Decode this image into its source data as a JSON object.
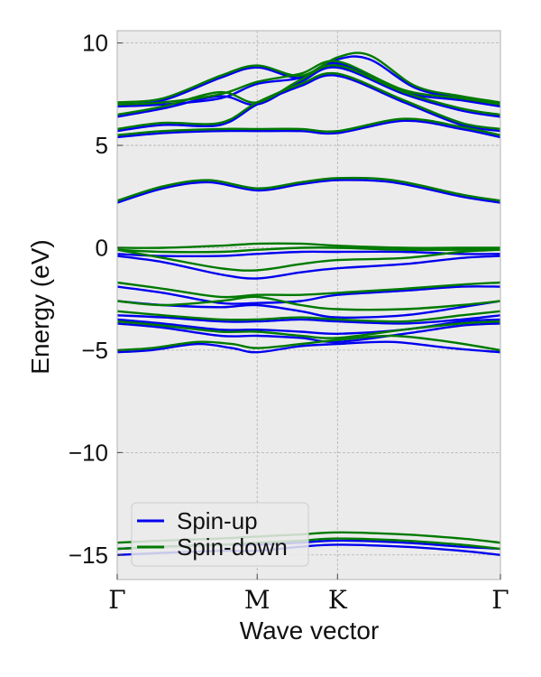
{
  "chart_data": {
    "type": "line",
    "title": "",
    "xlabel": "Wave vector",
    "ylabel": "Energy (eV)",
    "ylim": [
      -16.2,
      10.6
    ],
    "yticks": [
      10,
      5,
      0,
      -5,
      -10,
      -15
    ],
    "ytick_labels": [
      "10",
      "5",
      "0",
      "−5",
      "−10",
      "−15"
    ],
    "xlim": [
      0,
      3.34
    ],
    "kpoints": [
      {
        "label": "Γ",
        "x": 0
      },
      {
        "label": "M",
        "x": 1.22
      },
      {
        "label": "K",
        "x": 1.92
      },
      {
        "label": "Γ",
        "x": 3.34
      }
    ],
    "grid": true,
    "legend_position": "lower-left",
    "series": [
      {
        "name": "Spin-up",
        "color": "#0000ee",
        "bands": [
          {
            "x": [
              0,
              0.4,
              0.9,
              1.22,
              1.6,
              1.92,
              2.5,
              3.0,
              3.34
            ],
            "y": [
              -15.0,
              -14.9,
              -14.8,
              -14.8,
              -14.6,
              -14.5,
              -14.6,
              -14.8,
              -15.0
            ]
          },
          {
            "x": [
              0,
              0.4,
              0.9,
              1.22,
              1.6,
              1.92,
              2.5,
              3.0,
              3.34
            ],
            "y": [
              -14.7,
              -14.6,
              -14.5,
              -14.5,
              -14.4,
              -14.3,
              -14.4,
              -14.6,
              -14.7
            ]
          },
          {
            "x": [
              0,
              0.3,
              0.7,
              1.0,
              1.22,
              1.6,
              1.92,
              2.4,
              2.9,
              3.34
            ],
            "y": [
              -5.1,
              -5.0,
              -4.7,
              -4.9,
              -5.1,
              -4.8,
              -4.7,
              -4.6,
              -4.9,
              -5.1
            ]
          },
          {
            "x": [
              0,
              0.4,
              0.9,
              1.22,
              1.6,
              1.92,
              2.5,
              3.0,
              3.34
            ],
            "y": [
              -3.7,
              -3.9,
              -4.3,
              -4.3,
              -4.4,
              -4.6,
              -4.2,
              -3.8,
              -3.7
            ]
          },
          {
            "x": [
              0,
              0.4,
              0.9,
              1.22,
              1.6,
              1.92,
              2.5,
              3.0,
              3.34
            ],
            "y": [
              -3.5,
              -3.7,
              -4.0,
              -4.0,
              -4.1,
              -4.2,
              -4.0,
              -3.6,
              -3.5
            ]
          },
          {
            "x": [
              0,
              0.4,
              0.9,
              1.22,
              1.6,
              1.92,
              2.5,
              3.0,
              3.34
            ],
            "y": [
              -3.3,
              -3.4,
              -3.6,
              -3.6,
              -3.5,
              -3.6,
              -3.7,
              -3.5,
              -3.3
            ]
          },
          {
            "x": [
              0,
              0.4,
              0.9,
              1.22,
              1.6,
              1.92,
              2.5,
              3.0,
              3.34
            ],
            "y": [
              -2.6,
              -2.8,
              -2.9,
              -2.8,
              -3.1,
              -3.4,
              -3.3,
              -2.9,
              -2.6
            ]
          },
          {
            "x": [
              0,
              0.4,
              0.9,
              1.22,
              1.6,
              1.92,
              2.5,
              3.0,
              3.34
            ],
            "y": [
              -1.9,
              -2.2,
              -2.7,
              -2.7,
              -2.6,
              -2.3,
              -2.1,
              -1.9,
              -1.9
            ]
          },
          {
            "x": [
              0,
              0.4,
              0.9,
              1.22,
              1.6,
              1.92,
              2.5,
              3.0,
              3.34
            ],
            "y": [
              -0.4,
              -0.7,
              -1.3,
              -1.5,
              -1.2,
              -1.0,
              -0.8,
              -0.5,
              -0.4
            ]
          },
          {
            "x": [
              0,
              0.4,
              0.9,
              1.22,
              1.6,
              1.92,
              2.5,
              3.0,
              3.34
            ],
            "y": [
              -0.3,
              -0.4,
              -0.4,
              -0.3,
              -0.2,
              -0.2,
              -0.2,
              -0.3,
              -0.3
            ]
          },
          {
            "x": [
              0,
              0.4,
              0.8,
              1.22,
              1.6,
              1.92,
              2.4,
              3.0,
              3.34
            ],
            "y": [
              2.2,
              2.9,
              3.2,
              2.8,
              3.1,
              3.3,
              3.2,
              2.5,
              2.2
            ]
          },
          {
            "x": [
              0,
              0.4,
              0.9,
              1.22,
              1.6,
              1.92,
              2.5,
              3.0,
              3.34
            ],
            "y": [
              5.4,
              5.6,
              5.7,
              5.7,
              5.7,
              5.6,
              6.2,
              5.8,
              5.4
            ]
          },
          {
            "x": [
              0,
              0.4,
              0.9,
              1.22,
              1.6,
              1.92,
              2.5,
              3.0,
              3.34
            ],
            "y": [
              5.7,
              6.0,
              6.0,
              7.0,
              7.9,
              8.4,
              7.1,
              6.0,
              5.7
            ]
          },
          {
            "x": [
              0,
              0.4,
              0.9,
              1.22,
              1.6,
              1.92,
              2.5,
              3.0,
              3.34
            ],
            "y": [
              6.4,
              6.8,
              7.4,
              7.0,
              8.1,
              8.8,
              7.5,
              6.7,
              6.4
            ]
          },
          {
            "x": [
              0,
              0.4,
              0.9,
              1.22,
              1.6,
              1.92,
              2.5,
              3.0,
              3.34
            ],
            "y": [
              6.9,
              7.0,
              7.3,
              8.0,
              8.3,
              9.0,
              7.6,
              7.2,
              6.9
            ]
          },
          {
            "x": [
              0,
              0.4,
              0.9,
              1.22,
              1.6,
              1.92,
              2.2,
              2.6,
              3.0,
              3.34
            ],
            "y": [
              7.0,
              7.2,
              8.3,
              8.8,
              8.3,
              9.2,
              9.2,
              7.8,
              7.3,
              7.0
            ]
          }
        ]
      },
      {
        "name": "Spin-down",
        "color": "#007a00",
        "bands": [
          {
            "x": [
              0,
              0.4,
              0.9,
              1.22,
              1.6,
              1.92,
              2.5,
              3.0,
              3.34
            ],
            "y": [
              -14.7,
              -14.6,
              -14.5,
              -14.4,
              -14.3,
              -14.2,
              -14.3,
              -14.5,
              -14.7
            ]
          },
          {
            "x": [
              0,
              0.4,
              0.9,
              1.22,
              1.6,
              1.92,
              2.5,
              3.0,
              3.34
            ],
            "y": [
              -14.4,
              -14.3,
              -14.2,
              -14.1,
              -14.0,
              -13.9,
              -14.0,
              -14.2,
              -14.4
            ]
          },
          {
            "x": [
              0,
              0.3,
              0.7,
              1.0,
              1.22,
              1.6,
              1.92,
              2.4,
              2.9,
              3.34
            ],
            "y": [
              -5.0,
              -4.9,
              -4.6,
              -4.7,
              -4.9,
              -4.7,
              -4.5,
              -4.3,
              -4.6,
              -5.0
            ]
          },
          {
            "x": [
              0,
              0.4,
              0.9,
              1.22,
              1.6,
              1.92,
              2.5,
              3.0,
              3.34
            ],
            "y": [
              -3.6,
              -3.8,
              -4.1,
              -4.1,
              -4.3,
              -4.4,
              -4.0,
              -3.7,
              -3.6
            ]
          },
          {
            "x": [
              0,
              0.4,
              0.9,
              1.22,
              1.6,
              1.92,
              2.5,
              3.0,
              3.34
            ],
            "y": [
              -3.1,
              -3.3,
              -3.5,
              -3.5,
              -3.4,
              -3.5,
              -3.6,
              -3.3,
              -3.1
            ]
          },
          {
            "x": [
              0,
              0.4,
              0.9,
              1.22,
              1.6,
              1.92,
              2.5,
              3.0,
              3.34
            ],
            "y": [
              -2.6,
              -2.8,
              -2.6,
              -2.4,
              -2.8,
              -3.0,
              -3.0,
              -2.8,
              -2.6
            ]
          },
          {
            "x": [
              0,
              0.4,
              0.9,
              1.22,
              1.6,
              1.92,
              2.5,
              3.0,
              3.34
            ],
            "y": [
              -1.7,
              -2.0,
              -2.4,
              -2.3,
              -2.3,
              -2.2,
              -2.0,
              -1.8,
              -1.7
            ]
          },
          {
            "x": [
              0,
              0.4,
              0.9,
              1.22,
              1.6,
              1.92,
              2.5,
              3.0,
              3.34
            ],
            "y": [
              -0.1,
              -0.5,
              -1.0,
              -1.1,
              -0.8,
              -0.6,
              -0.5,
              -0.2,
              -0.1
            ]
          },
          {
            "x": [
              0,
              0.4,
              0.9,
              1.22,
              1.6,
              1.92,
              2.5,
              3.0,
              3.34
            ],
            "y": [
              0.0,
              0.0,
              0.1,
              0.2,
              0.2,
              0.1,
              0.0,
              0.0,
              0.0
            ]
          },
          {
            "x": [
              0,
              0.4,
              0.9,
              1.22,
              1.6,
              1.92,
              2.5,
              3.0,
              3.34
            ],
            "y": [
              -0.1,
              -0.2,
              -0.2,
              -0.1,
              0.0,
              0.0,
              -0.1,
              -0.1,
              -0.1
            ]
          },
          {
            "x": [
              0,
              0.4,
              0.8,
              1.22,
              1.6,
              1.92,
              2.4,
              3.0,
              3.34
            ],
            "y": [
              2.3,
              3.0,
              3.3,
              2.9,
              3.2,
              3.4,
              3.3,
              2.6,
              2.3
            ]
          },
          {
            "x": [
              0,
              0.4,
              0.9,
              1.22,
              1.6,
              1.92,
              2.5,
              3.0,
              3.34
            ],
            "y": [
              5.5,
              5.7,
              5.8,
              5.8,
              5.8,
              5.7,
              6.3,
              5.9,
              5.5
            ]
          },
          {
            "x": [
              0,
              0.4,
              0.9,
              1.22,
              1.6,
              1.92,
              2.5,
              3.0,
              3.34
            ],
            "y": [
              5.8,
              6.1,
              6.1,
              7.1,
              8.0,
              8.5,
              7.2,
              6.1,
              5.8
            ]
          },
          {
            "x": [
              0,
              0.4,
              0.9,
              1.22,
              1.6,
              1.92,
              2.5,
              3.0,
              3.34
            ],
            "y": [
              6.5,
              6.9,
              7.6,
              7.1,
              8.2,
              8.9,
              7.6,
              6.8,
              6.5
            ]
          },
          {
            "x": [
              0,
              0.4,
              0.9,
              1.22,
              1.6,
              1.92,
              2.5,
              3.0,
              3.34
            ],
            "y": [
              7.0,
              7.1,
              7.5,
              8.1,
              8.5,
              9.1,
              7.7,
              7.3,
              7.0
            ]
          },
          {
            "x": [
              0,
              0.4,
              0.9,
              1.22,
              1.6,
              1.92,
              2.2,
              2.6,
              3.0,
              3.34
            ],
            "y": [
              7.1,
              7.3,
              8.4,
              8.9,
              8.4,
              9.3,
              9.4,
              7.9,
              7.4,
              7.1
            ]
          }
        ]
      }
    ]
  }
}
